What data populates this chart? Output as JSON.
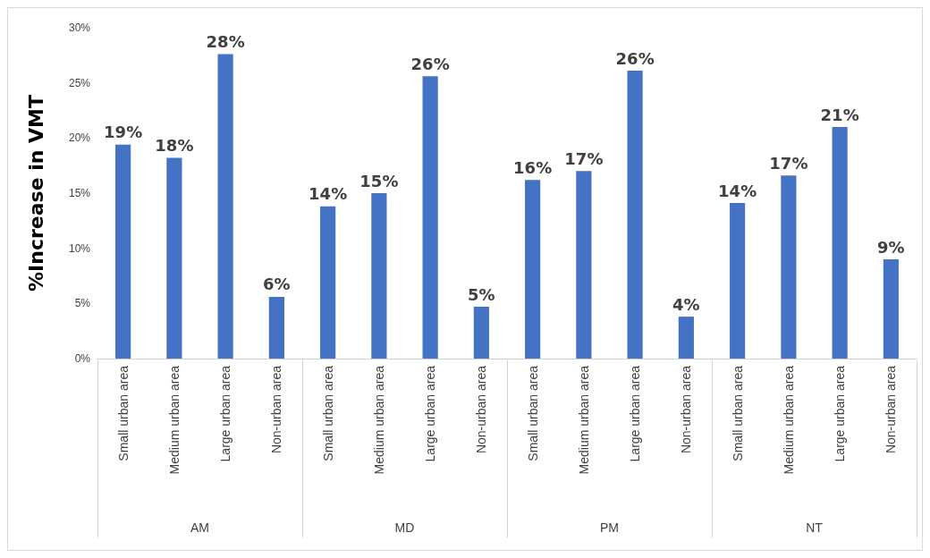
{
  "chart_data": {
    "type": "bar",
    "ylabel": "%Increase in VMT",
    "categories": [
      "Small urban area",
      "Medium urban area",
      "Large urban area",
      "Non-urban area",
      "Small urban area",
      "Medium urban area",
      "Large urban area",
      "Non-urban area",
      "Small urban area",
      "Medium urban area",
      "Large urban area",
      "Non-urban area",
      "Small urban area",
      "Medium urban area",
      "Large urban area",
      "Non-urban area"
    ],
    "values": [
      19.4,
      18.2,
      27.6,
      5.6,
      13.8,
      15.0,
      25.6,
      4.7,
      16.2,
      17.0,
      26.1,
      3.8,
      14.1,
      16.6,
      21.0,
      9.0
    ],
    "value_labels": [
      "19%",
      "18%",
      "28%",
      "6%",
      "14%",
      "15%",
      "26%",
      "5%",
      "16%",
      "17%",
      "26%",
      "4%",
      "14%",
      "17%",
      "21%",
      "9%"
    ],
    "color": "#4472c4",
    "annotations": [
      "AM",
      "MD",
      "PM",
      "NT"
    ],
    "ylim": [
      0,
      30
    ],
    "yticks": [
      {
        "value": 0,
        "label": "0%"
      },
      {
        "value": 5,
        "label": "5%"
      },
      {
        "value": 10,
        "label": "10%"
      },
      {
        "value": 15,
        "label": "15%"
      },
      {
        "value": 20,
        "label": "20%"
      },
      {
        "value": 25,
        "label": "25%"
      },
      {
        "value": 30,
        "label": "30%"
      }
    ],
    "grid": false
  }
}
